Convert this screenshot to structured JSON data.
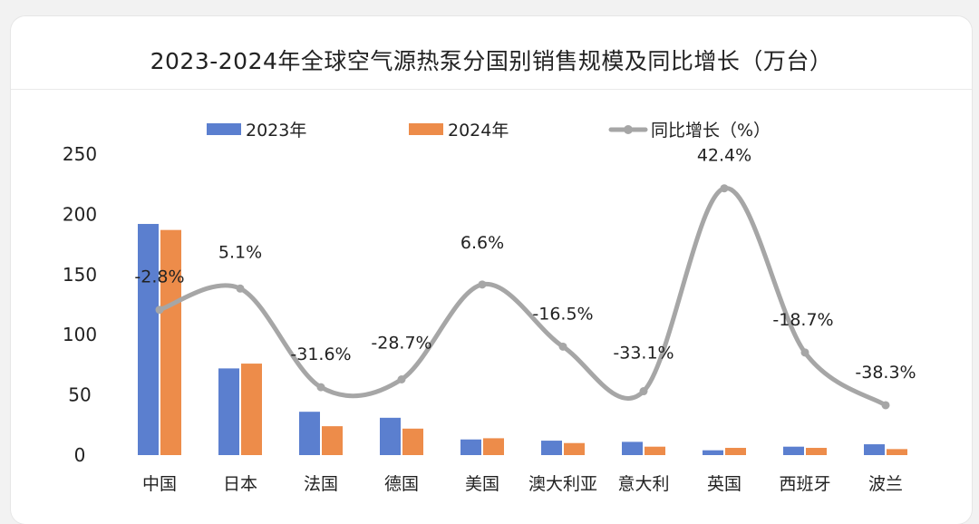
{
  "chart_data": {
    "type": "bar+line",
    "title": "2023-2024年全球空气源热泵分国别销售规模及同比增长（万台）",
    "categories": [
      "中国",
      "日本",
      "法国",
      "德国",
      "美国",
      "澳大利亚",
      "意大利",
      "英国",
      "西班牙",
      "波兰"
    ],
    "series": [
      {
        "name": "2023年",
        "type": "bar",
        "color": "#5b7fcf",
        "values": [
          192,
          72,
          36,
          31,
          13,
          12,
          11,
          4,
          7,
          9
        ]
      },
      {
        "name": "2024年",
        "type": "bar",
        "color": "#ed8c4a",
        "values": [
          187,
          76,
          24,
          22,
          14,
          10,
          7,
          6,
          6,
          5
        ]
      },
      {
        "name": "同比增长（%）",
        "type": "line",
        "color": "#a6a6a6",
        "values": [
          -2.8,
          5.1,
          -31.6,
          -28.7,
          6.6,
          -16.5,
          -33.1,
          42.4,
          -18.7,
          -38.3
        ],
        "labels": [
          "-2.8%",
          "5.1%",
          "-31.6%",
          "-28.7%",
          "6.6%",
          "-16.5%",
          "-33.1%",
          "42.4%",
          "-18.7%",
          "-38.3%"
        ]
      }
    ],
    "yticks": [
      "0",
      "50",
      "100",
      "150",
      "200",
      "250"
    ],
    "ylim": [
      0,
      250
    ],
    "legend": "top",
    "grid": false
  }
}
